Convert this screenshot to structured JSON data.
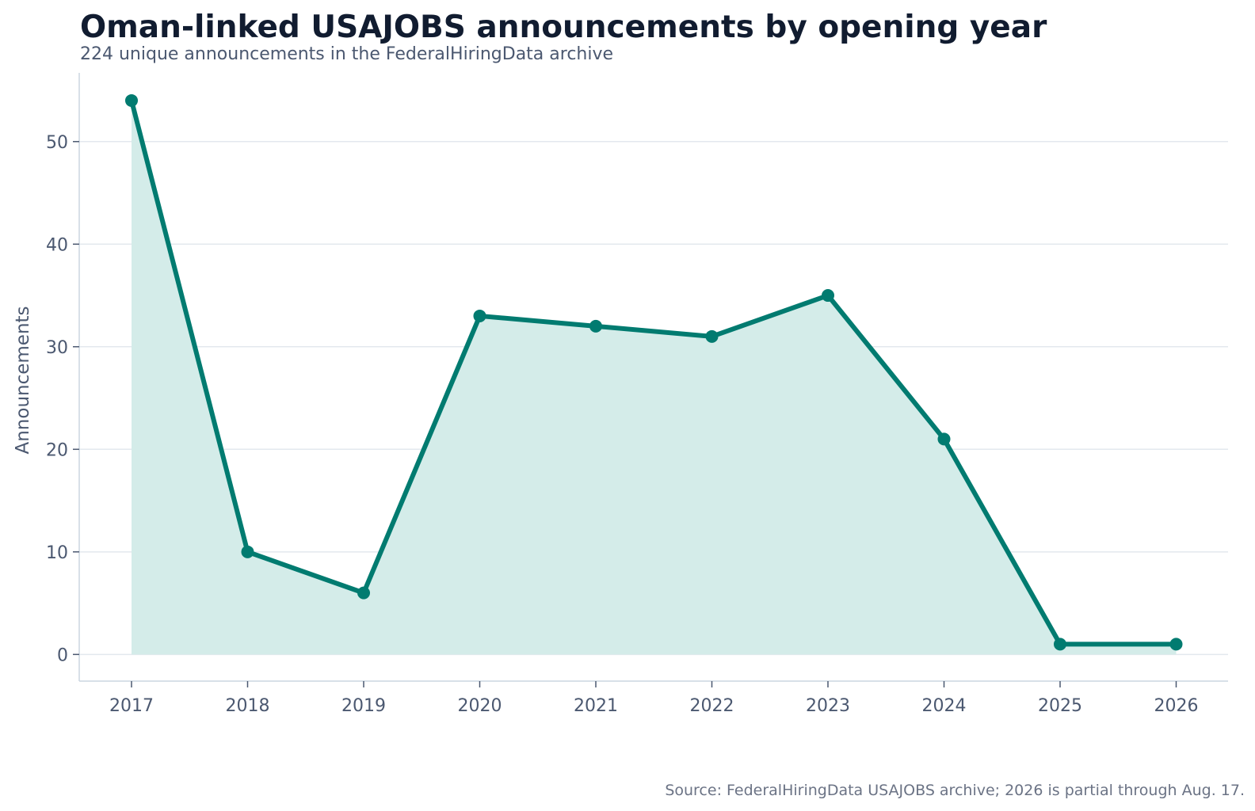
{
  "chart_data": {
    "type": "line",
    "title": "Oman-linked USAJOBS announcements by opening year",
    "subtitle": "224 unique announcements in the FederalHiringData archive",
    "ylabel": "Announcements",
    "xlabel": "",
    "x": [
      "2017",
      "2018",
      "2019",
      "2020",
      "2021",
      "2022",
      "2023",
      "2024",
      "2025",
      "2026"
    ],
    "series": [
      {
        "values": [
          54,
          10,
          6,
          33,
          32,
          31,
          35,
          21,
          1,
          1
        ]
      }
    ],
    "ylim": [
      -2.6,
      56.7
    ],
    "yticks": [
      0,
      10,
      20,
      30,
      40,
      50
    ],
    "grid": "horizontal",
    "area_fill": true,
    "source": "Source: FederalHiringData USAJOBS archive; 2026 is partial through Aug. 17.",
    "colors": {
      "line": "#017b70",
      "area": "#d4ece9",
      "grid": "#e3e8ee",
      "axis": "#cbd5e1",
      "title": "#111c30",
      "muted": "#4b5870",
      "source": "#6b7385"
    }
  }
}
